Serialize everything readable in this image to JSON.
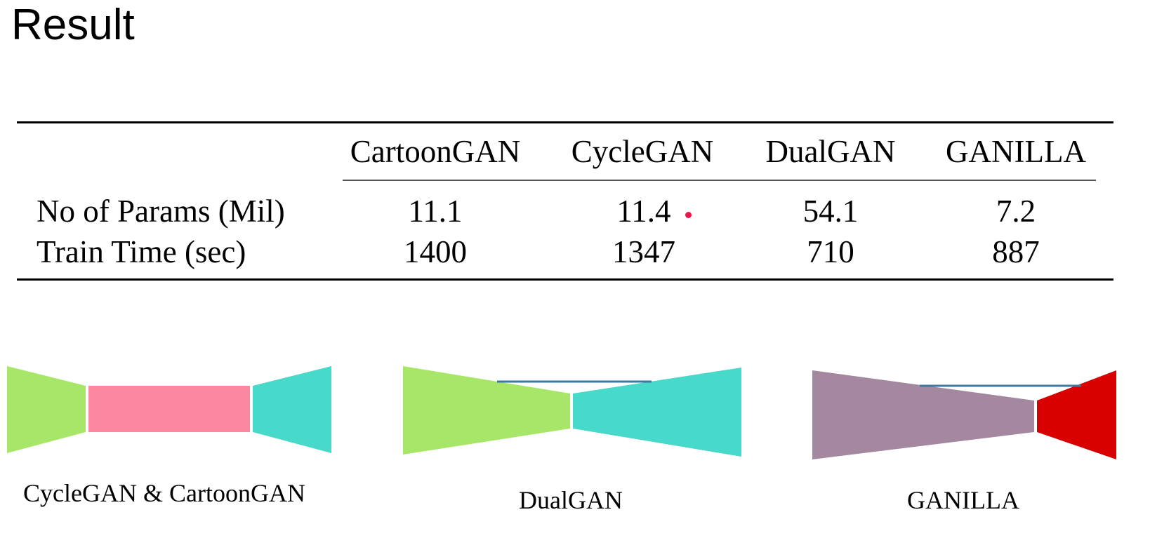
{
  "slide": {
    "title": "Result"
  },
  "table": {
    "columns": [
      "CartoonGAN",
      "CycleGAN",
      "DualGAN",
      "GANILLA"
    ],
    "rows": [
      {
        "label": "No of Params (Mil)",
        "values": [
          "11.1",
          "11.4",
          "54.1",
          "7.2"
        ]
      },
      {
        "label": "Train Time (sec)",
        "values": [
          "1400",
          "1347",
          "710",
          "887"
        ]
      }
    ]
  },
  "diagrams": {
    "cyclegan_cartoongan": {
      "label": "CycleGAN & CartoonGAN",
      "colors": {
        "encoder": "#a8e66a",
        "residual": "#fb88a0",
        "decoder": "#47d9c9"
      }
    },
    "dualgan": {
      "label": "DualGAN",
      "colors": {
        "encoder": "#a8e66a",
        "decoder": "#47d9c9",
        "skip": "#3c78a0"
      }
    },
    "ganilla": {
      "label": "GANILLA",
      "colors": {
        "encoder": "#a3889f",
        "decoder": "#d90000",
        "skip": "#3c78a0"
      }
    }
  },
  "pointer": {
    "color": "#e8174a"
  }
}
